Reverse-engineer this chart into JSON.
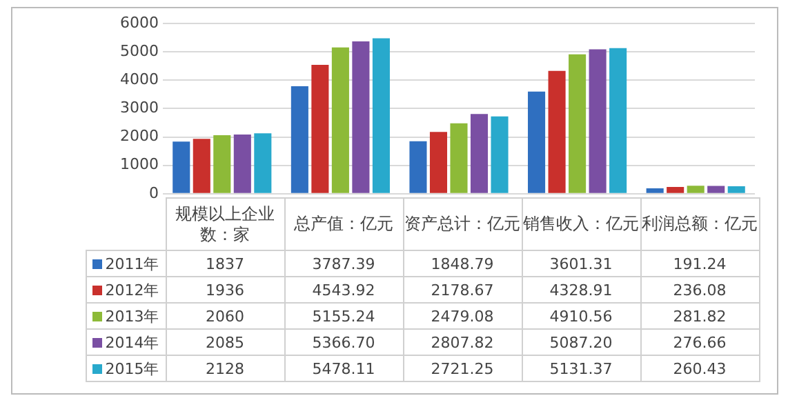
{
  "chart_data": {
    "type": "bar",
    "categories": [
      "规模以上企业数：家",
      "总产值：亿元",
      "资产总计：亿元",
      "销售收入：亿元",
      "利润总额：亿元"
    ],
    "series": [
      {
        "name": "2011年",
        "color": "#2f6fc0",
        "values": [
          1837,
          3787.39,
          1848.79,
          3601.31,
          191.24
        ],
        "value_labels": [
          "1837",
          "3787.39",
          "1848.79",
          "3601.31",
          "191.24"
        ]
      },
      {
        "name": "2012年",
        "color": "#c9302c",
        "values": [
          1936,
          4543.92,
          2178.67,
          4328.91,
          236.08
        ],
        "value_labels": [
          "1936",
          "4543.92",
          "2178.67",
          "4328.91",
          "236.08"
        ]
      },
      {
        "name": "2013年",
        "color": "#8dba38",
        "values": [
          2060,
          5155.24,
          2479.08,
          4910.56,
          281.82
        ],
        "value_labels": [
          "2060",
          "5155.24",
          "2479.08",
          "4910.56",
          "281.82"
        ]
      },
      {
        "name": "2014年",
        "color": "#7a4fa3",
        "values": [
          2085,
          5366.7,
          2807.82,
          5087.2,
          276.66
        ],
        "value_labels": [
          "2085",
          "5366.70",
          "2807.82",
          "5087.20",
          "276.66"
        ]
      },
      {
        "name": "2015年",
        "color": "#28a9cc",
        "values": [
          2128,
          5478.11,
          2721.25,
          5131.37,
          260.43
        ],
        "value_labels": [
          "2128",
          "5478.11",
          "2721.25",
          "5131.37",
          "260.43"
        ]
      }
    ],
    "ylim": [
      0,
      6000
    ],
    "yticks": [
      0,
      1000,
      2000,
      3000,
      4000,
      5000,
      6000
    ],
    "grid": "y",
    "legend": "bottom"
  }
}
